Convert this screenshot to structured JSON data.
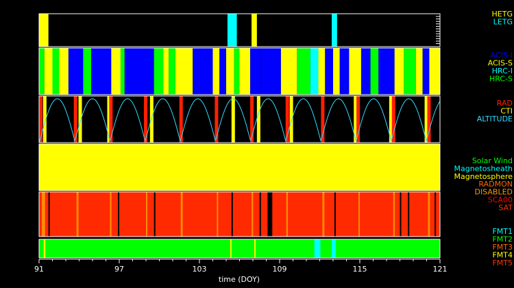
{
  "chart_data": {
    "type": "timeline",
    "xlabel": "time (DOY)",
    "xlim": [
      91,
      121
    ],
    "x_ticks": [
      "91",
      "97",
      "103",
      "109",
      "115",
      "121"
    ],
    "panels": [
      {
        "name": "grating",
        "legend": [
          {
            "label": "HETG",
            "color": "#ffff00"
          },
          {
            "label": "LETG",
            "color": "#00ffff"
          }
        ],
        "background": "#000000",
        "segments": [
          {
            "start": 91.0,
            "end": 91.7,
            "label": "HETG"
          },
          {
            "start": 105.1,
            "end": 105.8,
            "label": "LETG"
          },
          {
            "start": 106.9,
            "end": 107.3,
            "label": "HETG"
          },
          {
            "start": 112.9,
            "end": 113.3,
            "label": "LETG"
          }
        ]
      },
      {
        "name": "instrument",
        "legend": [
          {
            "label": "ACIS-I",
            "color": "#0000ff"
          },
          {
            "label": "ACIS-S",
            "color": "#ffff00"
          },
          {
            "label": "HRC-I",
            "color": "#00ffff"
          },
          {
            "label": "HRC-S",
            "color": "#00ff00"
          }
        ],
        "segments": [
          {
            "start": 91.0,
            "end": 91.4,
            "label": "HRC-S"
          },
          {
            "start": 91.4,
            "end": 92.0,
            "label": "ACIS-S"
          },
          {
            "start": 92.0,
            "end": 92.5,
            "label": "HRC-S"
          },
          {
            "start": 92.5,
            "end": 93.2,
            "label": "ACIS-S"
          },
          {
            "start": 93.2,
            "end": 94.3,
            "label": "ACIS-I"
          },
          {
            "start": 94.3,
            "end": 94.9,
            "label": "HRC-S"
          },
          {
            "start": 94.9,
            "end": 96.4,
            "label": "ACIS-I"
          },
          {
            "start": 96.4,
            "end": 97.1,
            "label": "ACIS-S"
          },
          {
            "start": 97.1,
            "end": 97.4,
            "label": "HRC-S"
          },
          {
            "start": 97.4,
            "end": 99.6,
            "label": "ACIS-I"
          },
          {
            "start": 99.6,
            "end": 100.3,
            "label": "HRC-S"
          },
          {
            "start": 100.3,
            "end": 100.7,
            "label": "ACIS-S"
          },
          {
            "start": 100.7,
            "end": 101.2,
            "label": "HRC-S"
          },
          {
            "start": 101.2,
            "end": 102.5,
            "label": "ACIS-S"
          },
          {
            "start": 102.5,
            "end": 104.0,
            "label": "ACIS-I"
          },
          {
            "start": 104.0,
            "end": 104.5,
            "label": "ACIS-S"
          },
          {
            "start": 104.5,
            "end": 105.0,
            "label": "ACIS-I"
          },
          {
            "start": 105.0,
            "end": 105.6,
            "label": "ACIS-S"
          },
          {
            "start": 105.6,
            "end": 106.0,
            "label": "HRC-S"
          },
          {
            "start": 106.0,
            "end": 106.8,
            "label": "ACIS-S"
          },
          {
            "start": 106.8,
            "end": 107.6,
            "label": "ACIS-I"
          },
          {
            "start": 107.6,
            "end": 109.1,
            "label": "ACIS-I"
          },
          {
            "start": 109.1,
            "end": 110.3,
            "label": "ACIS-S"
          },
          {
            "start": 110.3,
            "end": 111.3,
            "label": "HRC-S"
          },
          {
            "start": 111.3,
            "end": 111.9,
            "label": "HRC-I"
          },
          {
            "start": 111.9,
            "end": 112.4,
            "label": "ACIS-S"
          },
          {
            "start": 112.4,
            "end": 113.0,
            "label": "ACIS-I"
          },
          {
            "start": 113.0,
            "end": 113.5,
            "label": "ACIS-S"
          },
          {
            "start": 113.5,
            "end": 114.2,
            "label": "ACIS-I"
          },
          {
            "start": 114.2,
            "end": 115.1,
            "label": "ACIS-S"
          },
          {
            "start": 115.1,
            "end": 115.8,
            "label": "ACIS-I"
          },
          {
            "start": 115.8,
            "end": 116.4,
            "label": "HRC-S"
          },
          {
            "start": 116.4,
            "end": 117.6,
            "label": "ACIS-I"
          },
          {
            "start": 117.6,
            "end": 118.3,
            "label": "ACIS-S"
          },
          {
            "start": 118.3,
            "end": 119.2,
            "label": "HRC-S"
          },
          {
            "start": 119.2,
            "end": 119.7,
            "label": "ACIS-S"
          },
          {
            "start": 119.7,
            "end": 120.2,
            "label": "ACIS-I"
          },
          {
            "start": 120.2,
            "end": 121.0,
            "label": "ACIS-S"
          }
        ]
      },
      {
        "name": "radiation",
        "legend": [
          {
            "label": "RAD",
            "color": "#ff2000"
          },
          {
            "label": "CTI",
            "color": "#ffff00"
          },
          {
            "label": "ALTITUDE",
            "color": "#33ddff"
          }
        ],
        "background": "#000000",
        "rad_times": [
          91.05,
          93.65,
          96.3,
          98.9,
          101.55,
          104.2,
          106.85,
          109.5,
          112.15,
          114.8,
          117.45,
          120.1
        ],
        "cti_times": [
          91.3,
          93.95,
          96.1,
          99.3,
          105.4,
          107.3,
          109.75,
          114.55,
          117.2,
          119.85
        ],
        "altitude_period_days": 2.63,
        "altitude_phase_day": 91.05
      },
      {
        "name": "environment",
        "legend": [
          {
            "label": "Solar Wind",
            "color": "#00ff00"
          },
          {
            "label": "Magnetosheath",
            "color": "#00ffff"
          },
          {
            "label": "Magnetosphere",
            "color": "#ffff00"
          }
        ],
        "segments": [
          {
            "start": 91.0,
            "end": 121.0,
            "label": "Magnetosphere"
          }
        ]
      },
      {
        "name": "radmon",
        "legend": [
          {
            "label": "RADMON",
            "color": "#ff6600"
          },
          {
            "label": "DISABLED",
            "color": "#ff9900"
          },
          {
            "label": "SCA00",
            "color": "#ff0000"
          },
          {
            "label": "SAT",
            "color": "#ff3300"
          }
        ],
        "base": "#ff2a00",
        "markers": [
          {
            "t": 91.2,
            "color": "#ff8c00",
            "w": 0.25
          },
          {
            "t": 91.7,
            "color": "#000000",
            "w": 0.1
          },
          {
            "t": 93.8,
            "color": "#ff8c00",
            "w": 0.15
          },
          {
            "t": 96.3,
            "color": "#ff8c00",
            "w": 0.12
          },
          {
            "t": 96.9,
            "color": "#000000",
            "w": 0.1
          },
          {
            "t": 99.0,
            "color": "#ff8c00",
            "w": 0.1
          },
          {
            "t": 99.6,
            "color": "#000000",
            "w": 0.08
          },
          {
            "t": 101.6,
            "color": "#ff8c00",
            "w": 0.15
          },
          {
            "t": 104.3,
            "color": "#ff8c00",
            "w": 0.1
          },
          {
            "t": 105.4,
            "color": "#000000",
            "w": 0.08
          },
          {
            "t": 106.9,
            "color": "#ff8c00",
            "w": 0.12
          },
          {
            "t": 107.5,
            "color": "#000000",
            "w": 0.08
          },
          {
            "t": 108.1,
            "color": "#000000",
            "w": 0.35
          },
          {
            "t": 109.5,
            "color": "#ff8c00",
            "w": 0.12
          },
          {
            "t": 112.2,
            "color": "#ff8c00",
            "w": 0.15
          },
          {
            "t": 113.1,
            "color": "#000000",
            "w": 0.08
          },
          {
            "t": 114.9,
            "color": "#ff8c00",
            "w": 0.1
          },
          {
            "t": 117.5,
            "color": "#ff8c00",
            "w": 0.12
          },
          {
            "t": 118.0,
            "color": "#000000",
            "w": 0.08
          },
          {
            "t": 118.6,
            "color": "#000000",
            "w": 0.06
          },
          {
            "t": 120.1,
            "color": "#ff8c00",
            "w": 0.15
          },
          {
            "t": 120.6,
            "color": "#000000",
            "w": 0.06
          }
        ]
      },
      {
        "name": "format",
        "legend": [
          {
            "label": "FMT1",
            "color": "#00ffff"
          },
          {
            "label": "FMT2",
            "color": "#00ff00"
          },
          {
            "label": "FMT3",
            "color": "#ff6600"
          },
          {
            "label": "FMT4",
            "color": "#ffff00"
          },
          {
            "label": "FMT5",
            "color": "#ff3300"
          }
        ],
        "base": "#00ff00",
        "markers": [
          {
            "t": 91.35,
            "color": "#ffff00",
            "w": 0.12
          },
          {
            "t": 105.3,
            "color": "#ffff00",
            "w": 0.06
          },
          {
            "t": 107.1,
            "color": "#ffff00",
            "w": 0.06
          },
          {
            "t": 111.6,
            "color": "#00ffff",
            "w": 0.45
          },
          {
            "t": 112.9,
            "color": "#00ffff",
            "w": 0.3
          }
        ]
      }
    ]
  }
}
